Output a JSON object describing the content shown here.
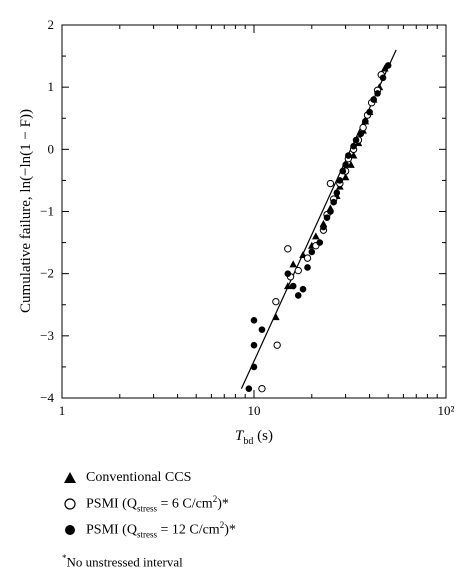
{
  "chart_data": {
    "type": "scatter",
    "xscale": "log",
    "xlim": [
      1,
      100
    ],
    "ylim": [
      -4,
      2
    ],
    "x_ticks": [
      1,
      10,
      100
    ],
    "x_tick_labels": [
      "1",
      "10",
      "10²"
    ],
    "y_ticks": [
      -4,
      -3,
      -2,
      -1,
      0,
      1,
      2
    ],
    "y_tick_labels": [
      "−4",
      "−3",
      "−2",
      "−1",
      "0",
      "1",
      "2"
    ],
    "xlabel": "Tbd (s)",
    "xlabel_main": "T",
    "xlabel_sub": "bd",
    "xlabel_unit": " (s)",
    "ylabel": "Cumulative failure, ln(−ln(1 − F))",
    "grid": false,
    "fit_line": {
      "x": [
        8.6,
        55
      ],
      "y": [
        -3.85,
        1.6
      ]
    },
    "series": [
      {
        "name": "Conventional CCS",
        "marker": "triangle",
        "points": [
          [
            13,
            -2.7
          ],
          [
            15,
            -2.2
          ],
          [
            16,
            -1.85
          ],
          [
            18,
            -1.7
          ],
          [
            20,
            -1.55
          ],
          [
            21,
            -1.4
          ],
          [
            23,
            -1.2
          ],
          [
            25,
            -0.95
          ],
          [
            27,
            -0.75
          ],
          [
            28,
            -0.6
          ],
          [
            30,
            -0.45
          ],
          [
            32,
            -0.25
          ],
          [
            33,
            -0.1
          ],
          [
            35,
            0.1
          ],
          [
            37,
            0.3
          ],
          [
            38,
            0.45
          ],
          [
            40,
            0.6
          ],
          [
            42,
            0.8
          ],
          [
            45,
            1.0
          ],
          [
            48,
            1.3
          ]
        ]
      },
      {
        "name": "PSMI (Qstress = 6 C/cm²)*",
        "marker": "open-circle",
        "points": [
          [
            11,
            -3.85
          ],
          [
            13,
            -2.45
          ],
          [
            13.2,
            -3.15
          ],
          [
            15,
            -1.6
          ],
          [
            15.5,
            -2.05
          ],
          [
            17,
            -1.95
          ],
          [
            19,
            -1.75
          ],
          [
            21,
            -1.55
          ],
          [
            23,
            -1.3
          ],
          [
            24,
            -1.05
          ],
          [
            25,
            -0.55
          ],
          [
            26,
            -0.8
          ],
          [
            28,
            -0.55
          ],
          [
            30,
            -0.35
          ],
          [
            31,
            -0.15
          ],
          [
            33,
            0.0
          ],
          [
            35,
            0.15
          ],
          [
            37,
            0.35
          ],
          [
            39,
            0.55
          ],
          [
            41,
            0.75
          ],
          [
            44,
            0.95
          ],
          [
            46,
            1.2
          ]
        ]
      },
      {
        "name": "PSMI (Qstress = 12 C/cm²)*",
        "marker": "filled-circle",
        "points": [
          [
            9.4,
            -3.85
          ],
          [
            10,
            -2.75
          ],
          [
            10,
            -3.15
          ],
          [
            10,
            -3.5
          ],
          [
            11,
            -2.9
          ],
          [
            15,
            -2.0
          ],
          [
            16,
            -2.2
          ],
          [
            17,
            -2.35
          ],
          [
            18,
            -2.25
          ],
          [
            19,
            -1.9
          ],
          [
            20,
            -1.65
          ],
          [
            22,
            -1.5
          ],
          [
            23,
            -1.25
          ],
          [
            24,
            -1.1
          ],
          [
            25,
            -1.0
          ],
          [
            26,
            -0.85
          ],
          [
            27,
            -0.7
          ],
          [
            28,
            -0.5
          ],
          [
            29,
            -0.35
          ],
          [
            30,
            -0.25
          ],
          [
            31,
            -0.1
          ],
          [
            33,
            0.05
          ],
          [
            34,
            0.15
          ],
          [
            36,
            0.25
          ],
          [
            38,
            0.45
          ],
          [
            40,
            0.6
          ],
          [
            42,
            0.8
          ],
          [
            44,
            0.9
          ],
          [
            47,
            1.15
          ],
          [
            50,
            1.35
          ]
        ]
      }
    ]
  },
  "legend": {
    "items": [
      {
        "pre": "Conventional CCS",
        "sub": "",
        "post": "",
        "sup": "",
        "tail": ""
      },
      {
        "pre": "PSMI (Q",
        "sub": "stress",
        "post": " = 6 C/cm",
        "sup": "2",
        "tail": ")*"
      },
      {
        "pre": "PSMI (Q",
        "sub": "stress",
        "post": " = 12 C/cm",
        "sup": "2",
        "tail": ")*"
      }
    ],
    "note": "No unstressed interval",
    "note_mark": "*"
  }
}
